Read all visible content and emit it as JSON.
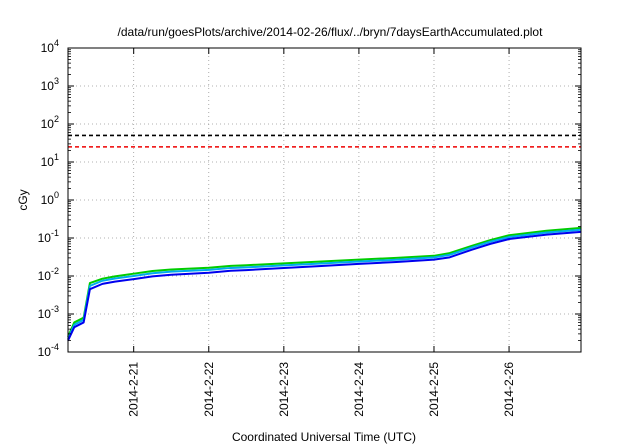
{
  "chart_data": {
    "type": "line",
    "title": "/data/run/goesPlots/archive/2014-02-26/flux/../bryn/7daysEarthAccumulated.plot",
    "xlabel": "Coordinated Universal Time (UTC)",
    "ylabel": "cGy",
    "yscale": "log",
    "ylim": [
      0.0001,
      10000
    ],
    "xlim": [
      "2014-02-20 03:00",
      "2014-02-26 23:00"
    ],
    "grid": true,
    "x_ticks": [
      "2014-2-21",
      "2014-2-22",
      "2014-2-23",
      "2014-2-24",
      "2014-2-25",
      "2014-2-26"
    ],
    "y_ticks": [
      {
        "value": 0.0001,
        "base": "10",
        "exp": "-4"
      },
      {
        "value": 0.001,
        "base": "10",
        "exp": "-3"
      },
      {
        "value": 0.01,
        "base": "10",
        "exp": "-2"
      },
      {
        "value": 0.1,
        "base": "10",
        "exp": "-1"
      },
      {
        "value": 1,
        "base": "10",
        "exp": "0"
      },
      {
        "value": 10,
        "base": "10",
        "exp": "1"
      },
      {
        "value": 100,
        "base": "10",
        "exp": "2"
      },
      {
        "value": 1000,
        "base": "10",
        "exp": "3"
      },
      {
        "value": 10000,
        "base": "10",
        "exp": "4"
      }
    ],
    "x": [
      "2014-02-20 03:00",
      "2014-02-20 05:00",
      "2014-02-20 08:00",
      "2014-02-20 10:00",
      "2014-02-20 14:00",
      "2014-02-20 18:00",
      "2014-02-21 00:00",
      "2014-02-21 06:00",
      "2014-02-21 12:00",
      "2014-02-22 00:00",
      "2014-02-22 07:00",
      "2014-02-22 12:00",
      "2014-02-23 00:00",
      "2014-02-23 12:00",
      "2014-02-24 00:00",
      "2014-02-24 12:00",
      "2014-02-25 00:00",
      "2014-02-25 05:00",
      "2014-02-25 12:00",
      "2014-02-25 18:00",
      "2014-02-26 00:00",
      "2014-02-26 12:00",
      "2014-02-26 23:00"
    ],
    "series": [
      {
        "color": "#00cc00",
        "values": [
          0.00025,
          0.0006,
          0.0008,
          0.0065,
          0.0085,
          0.0098,
          0.0115,
          0.0135,
          0.0148,
          0.0165,
          0.0185,
          0.0192,
          0.0215,
          0.024,
          0.027,
          0.03,
          0.034,
          0.04,
          0.062,
          0.088,
          0.118,
          0.155,
          0.185
        ]
      },
      {
        "color": "#00aaee",
        "values": [
          0.00022,
          0.00052,
          0.0007,
          0.0055,
          0.0075,
          0.0086,
          0.01,
          0.0118,
          0.013,
          0.0145,
          0.0163,
          0.0169,
          0.019,
          0.0213,
          0.024,
          0.0268,
          0.031,
          0.036,
          0.056,
          0.08,
          0.106,
          0.14,
          0.165
        ]
      },
      {
        "color": "#0000ee",
        "values": [
          0.0002,
          0.00045,
          0.0006,
          0.0045,
          0.0062,
          0.0071,
          0.0083,
          0.0098,
          0.0108,
          0.0122,
          0.0137,
          0.0143,
          0.0162,
          0.0184,
          0.0208,
          0.0234,
          0.027,
          0.031,
          0.049,
          0.07,
          0.094,
          0.123,
          0.145
        ]
      }
    ],
    "thresholds": [
      {
        "value": 50,
        "color": "#000000",
        "style": "dashed"
      },
      {
        "value": 25,
        "color": "#ee0000",
        "style": "dashed"
      }
    ]
  }
}
